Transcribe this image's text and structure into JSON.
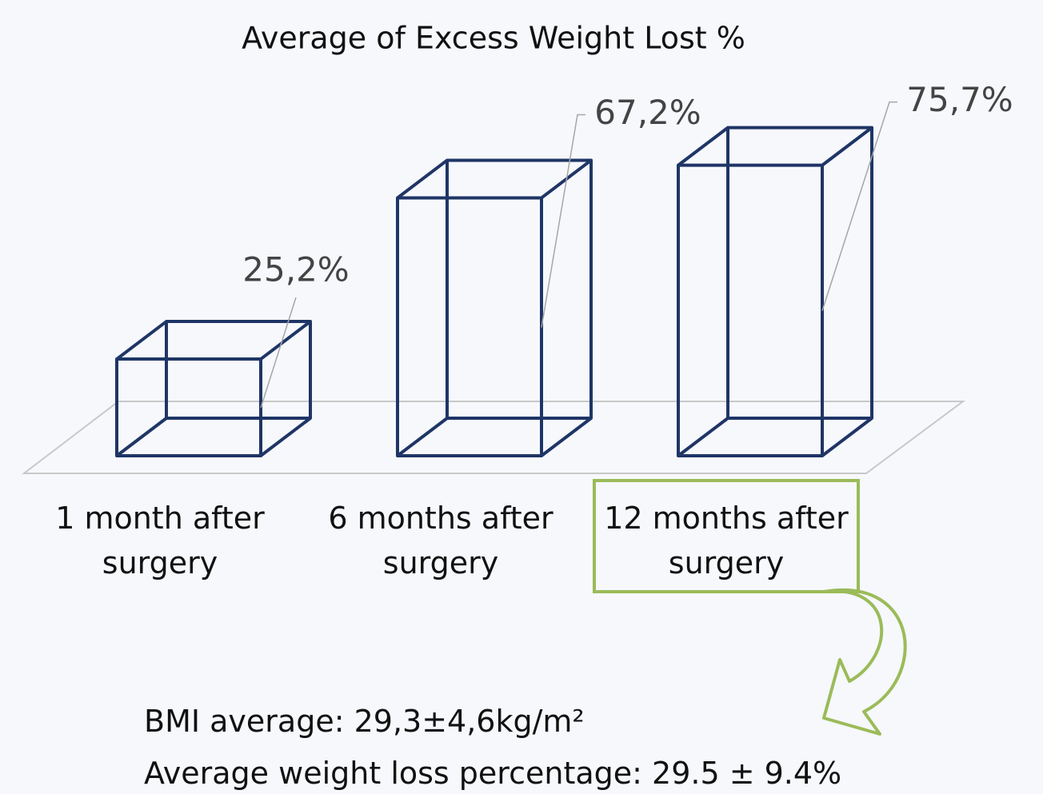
{
  "chart_data": {
    "type": "bar3d",
    "title": "Average of Excess Weight Lost %",
    "categories": [
      "1 month after surgery",
      "6 months after surgery",
      "12 months after surgery"
    ],
    "values": [
      25.2,
      67.2,
      75.7
    ],
    "value_labels": [
      "25,2%",
      "67,2%",
      "75,7%"
    ],
    "color": "#1f3566",
    "annotations": [
      "BMI average: 29,3±4,6kg/m²",
      "Average weight loss percentage: 29.5 ± 9.4%"
    ]
  }
}
